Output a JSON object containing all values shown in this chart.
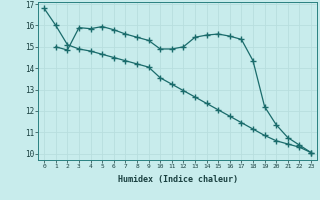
{
  "xlabel": "Humidex (Indice chaleur)",
  "background_color": "#c8ecec",
  "grid_color": "#b8dede",
  "line_color": "#1a6b6b",
  "xlim": [
    -0.5,
    23.5
  ],
  "ylim": [
    9.7,
    17.1
  ],
  "yticks": [
    10,
    11,
    12,
    13,
    14,
    15,
    16,
    17
  ],
  "xticks": [
    0,
    1,
    2,
    3,
    4,
    5,
    6,
    7,
    8,
    9,
    10,
    11,
    12,
    13,
    14,
    15,
    16,
    17,
    18,
    19,
    20,
    21,
    22,
    23
  ],
  "line1_x": [
    0,
    1,
    2,
    3,
    4,
    5,
    6,
    7,
    8,
    9,
    10,
    11,
    12,
    13,
    14,
    15,
    16,
    17,
    18,
    19,
    20,
    21,
    22,
    23
  ],
  "line1_y": [
    16.8,
    16.0,
    15.1,
    14.9,
    14.8,
    14.65,
    14.5,
    14.35,
    14.2,
    14.05,
    13.55,
    13.25,
    12.95,
    12.65,
    12.35,
    12.05,
    11.75,
    11.45,
    11.15,
    10.85,
    10.6,
    10.45,
    10.3,
    10.05
  ],
  "line2_x": [
    1,
    2,
    3,
    4,
    5,
    6,
    7,
    8,
    9,
    10,
    11,
    12,
    13,
    14,
    15,
    16,
    17,
    18,
    19,
    20,
    21,
    22,
    23
  ],
  "line2_y": [
    15.0,
    14.85,
    15.9,
    15.85,
    15.95,
    15.8,
    15.6,
    15.45,
    15.3,
    14.9,
    14.9,
    15.0,
    15.45,
    15.55,
    15.6,
    15.5,
    15.35,
    14.35,
    12.2,
    11.35,
    10.75,
    10.4,
    10.05
  ]
}
